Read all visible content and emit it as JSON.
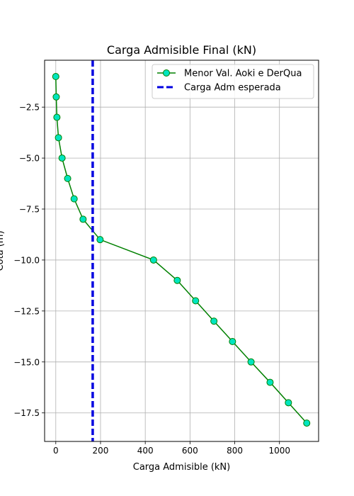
{
  "chart_data": {
    "type": "line",
    "title": "Carga Admisible Final (kN)",
    "xlabel": "Carga Admisible (kN)",
    "ylabel": "Cota (m)",
    "xlim": [
      -50,
      1175
    ],
    "ylim": [
      -18.9,
      -0.2
    ],
    "xticks": [
      0,
      200,
      400,
      600,
      800,
      1000
    ],
    "yticks": [
      -2.5,
      -5.0,
      -7.5,
      -10.0,
      -12.5,
      -15.0,
      -17.5
    ],
    "xtick_labels": [
      "0",
      "200",
      "400",
      "600",
      "800",
      "1000"
    ],
    "ytick_labels": [
      "−2.5",
      "−5.0",
      "−7.5",
      "−10.0",
      "−12.5",
      "−15.0",
      "−17.5"
    ],
    "grid": true,
    "legend_position": "top-right",
    "series": [
      {
        "name": "Menor Val. Aoki e DerQua",
        "line_color": "#008000",
        "marker_face": "#00e5c0",
        "marker_edge": "#008000",
        "x": [
          0,
          2,
          5,
          12,
          28,
          53,
          82,
          122,
          198,
          437,
          543,
          625,
          707,
          790,
          873,
          958,
          1040,
          1122
        ],
        "y": [
          -1,
          -2,
          -3,
          -4,
          -5,
          -6,
          -7,
          -8,
          -9,
          -10,
          -11,
          -12,
          -13,
          -14,
          -15,
          -16,
          -17,
          -18
        ]
      },
      {
        "name": "Carga Adm esperada",
        "type": "vline",
        "color": "#0000e0",
        "dash": "dashed",
        "x_value": 165
      }
    ]
  }
}
